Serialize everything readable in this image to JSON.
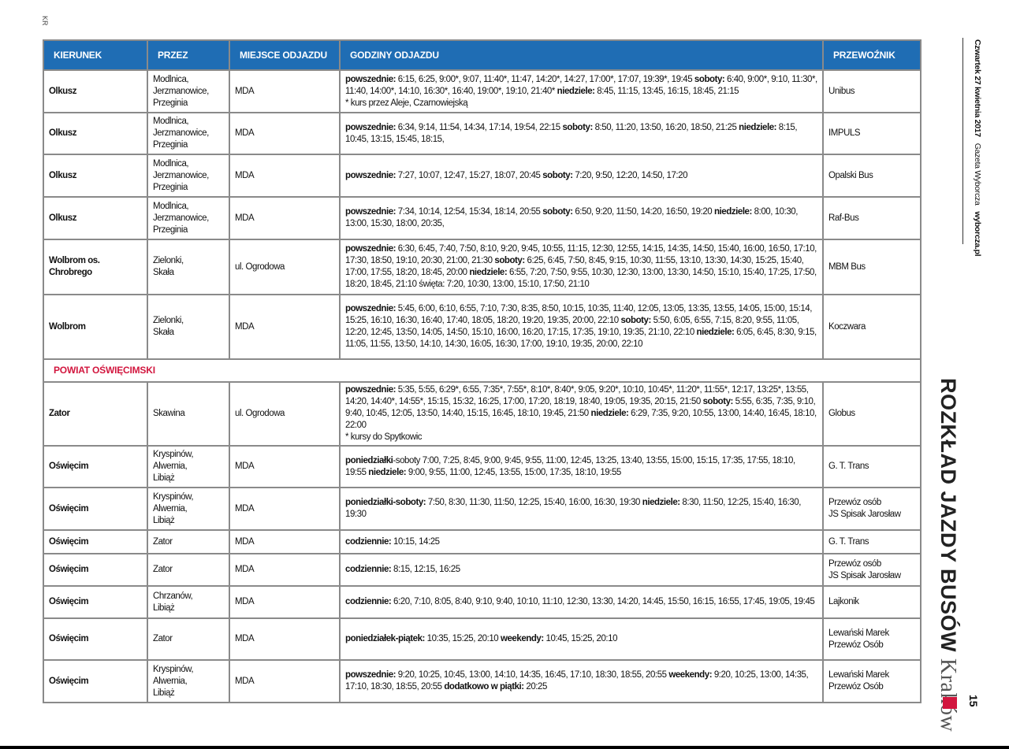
{
  "corner_mark": "KR",
  "side": {
    "date": "Czwartek 27 kwietnia 2017",
    "paper": "Gazeta Wyborcza",
    "site": "wyborcza.pl"
  },
  "title": {
    "main": "ROZKŁAD JAZDY BUSÓW",
    "city": "Kraków"
  },
  "page_number": "15",
  "colors": {
    "header": "#1f6db4",
    "accent": "#d2163e",
    "border": "#8a8a8a"
  },
  "headers": [
    "KIERUNEK",
    "PRZEZ",
    "MIEJSCE ODJAZDU",
    "GODZINY ODJAZDU",
    "PRZEWOŹNIK"
  ],
  "rows": [
    {
      "kierunek": "Olkusz",
      "przez": [
        "Modlnica,",
        "Jerzmanowice,",
        "Przeginia"
      ],
      "miejsce": "MDA",
      "przewoznik": [
        "Unibus"
      ],
      "godziny": [
        {
          "b": "powszednie:",
          "t": " 6:15, 6:25, 9:00*, 9:07, 11:40*, 11:47, 14:20*, 14:27, 17:00*, 17:07, 19:39*, 19:45 "
        },
        {
          "b": "soboty:",
          "t": " 6:40, 9:00*, 9:10, 11:30*, 11:40, 14:00*, 14:10, 16:30*, 16:40, 19:00*, 19:10, 21:40* "
        },
        {
          "b": "niedziele:",
          "t": " 8:45, 11:15, 13:45, 16:15, 18:45, 21:15"
        }
      ],
      "note": "* kurs przez Aleje, Czarnowiejską"
    },
    {
      "kierunek": "Olkusz",
      "przez": [
        "Modlnica,",
        "Jerzmanowice,",
        "Przeginia"
      ],
      "miejsce": "MDA",
      "przewoznik": [
        "IMPULS"
      ],
      "godziny": [
        {
          "b": "powszednie:",
          "t": " 6:34, 9:14, 11:54, 14:34, 17:14, 19:54, 22:15 "
        },
        {
          "b": "soboty:",
          "t": " 8:50, 11:20, 13:50, 16:20, 18:50, 21:25 "
        },
        {
          "b": "niedziele:",
          "t": " 8:15, 10:45, 13:15, 15:45, 18:15,"
        }
      ]
    },
    {
      "kierunek": "Olkusz",
      "przez": [
        "Modlnica,",
        "Jerzmanowice,",
        "Przeginia"
      ],
      "miejsce": "MDA",
      "przewoznik": [
        "Opalski Bus"
      ],
      "godziny": [
        {
          "b": "powszednie:",
          "t": " 7:27, 10:07, 12:47, 15:27, 18:07, 20:45 "
        },
        {
          "b": "soboty:",
          "t": " 7:20, 9:50, 12:20, 14:50, 17:20"
        }
      ]
    },
    {
      "kierunek": "Olkusz",
      "przez": [
        "Modlnica,",
        "Jerzmanowice,",
        "Przeginia"
      ],
      "miejsce": "MDA",
      "przewoznik": [
        "Raf-Bus"
      ],
      "godziny": [
        {
          "b": "powszednie:",
          "t": " 7:34, 10:14, 12:54, 15:34, 18:14, 20:55 "
        },
        {
          "b": "soboty:",
          "t": " 6:50, 9:20, 11:50, 14:20, 16:50, 19:20 "
        },
        {
          "b": "niedziele:",
          "t": " 8:00, 10:30, 13:00, 15:30, 18:00, 20:35,"
        }
      ]
    },
    {
      "kierunek": "Wolbrom os. Chrobrego",
      "przez": [
        "Zielonki,",
        "Skała"
      ],
      "miejsce": "ul. Ogrodowa",
      "przewoznik": [
        "MBM Bus"
      ],
      "godziny": [
        {
          "b": "powszednie:",
          "t": " 6:30, 6:45, 7:40, 7:50, 8:10, 9:20, 9:45, 10:55, 11:15, 12:30, 12:55, 14:15, 14:35, 14:50, 15:40, 16:00, 16:50, 17:10, 17:30, 18:50, 19:10, 20:30, 21:00, 21:30 "
        },
        {
          "b": "soboty:",
          "t": " 6:25, 6:45, 7:50, 8:45, 9:15, 10:30, 11:55, 13:10, 13:30, 14:30, 15:25, 15:40, 17:00, 17:55, 18:20, 18:45, 20:00 "
        },
        {
          "b": "niedziele:",
          "t": " 6:55, 7:20, 7:50, 9:55, 10:30, 12:30, 13:00, 13:30, 14:50, 15:10, 15:40, 17:25, 17:50, 18:20, 18:45, 21:10 święta: 7:20, 10:30, 13:00, 15:10, 17:50, 21:10"
        }
      ]
    },
    {
      "kierunek": "Wolbrom",
      "przez": [
        "Zielonki,",
        "Skała"
      ],
      "miejsce": "MDA",
      "przewoznik": [
        "Koczwara"
      ],
      "godziny": [
        {
          "b": "powszednie:",
          "t": " 5:45, 6:00, 6:10, 6:55, 7:10, 7:30, 8:35, 8:50, 10:15, 10:35, 11:40, 12:05, 13:05, 13:35, 13:55, 14:05, 15:00, 15:14, 15:25, 16:10, 16:30, 16:40, 17:40, 18:05, 18:20, 19:20, 19:35, 20:00, 22:10 "
        },
        {
          "b": "soboty:",
          "t": " 5:50, 6:05, 6:55, 7:15, 8:20, 9:55, 11:05, 12:20, 12:45, 13:50, 14:05, 14:50, 15:10, 16:00, 16:20, 17:15, 17:35, 19:10, 19:35, 21:10, 22:10 "
        },
        {
          "b": "niedziele:",
          "t": " 6:05, 6:45, 8:30, 9:15, 11:05, 11:55, 13:50, 14:10, 14:30, 16:05, 16:30, 17:00, 19:10, 19:35, 20:00, 22:10"
        }
      ]
    },
    {
      "section": "POWIAT OŚWIĘCIMSKI"
    },
    {
      "kierunek": "Zator",
      "przez": [
        "Skawina"
      ],
      "miejsce": "ul. Ogrodowa",
      "przewoznik": [
        "Globus"
      ],
      "godziny": [
        {
          "b": "powszednie:",
          "t": "  5:35, 5:55, 6:29*, 6:55, 7:35*, 7:55*, 8:10*, 8:40*, 9:05, 9:20*, 10:10, 10:45*, 11:20*, 11:55*, 12:17, 13:25*, 13:55, 14:20, 14:40*, 14:55*, 15:15, 15:32, 16:25, 17:00, 17:20, 18:19, 18:40, 19:05, 19:35, 20:15, 21:50 "
        },
        {
          "b": "soboty:",
          "t": "  5:55, 6:35, 7:35, 9:10, 9:40, 10:45, 12:05, 13:50, 14:40,  15:15, 16:45, 18:10, 19:45,  21:50 "
        },
        {
          "b": "niedziele:",
          "t": "  6:29, 7:35, 9:20, 10:55, 13:00, 14:40, 16:45, 18:10, 22:00"
        }
      ],
      "note": "* kursy do Spytkowic"
    },
    {
      "kierunek": "Oświęcim",
      "przez": [
        "Kryspinów,",
        "Alwernia,",
        "Libiąż"
      ],
      "miejsce": "MDA",
      "przewoznik": [
        "G. T. Trans"
      ],
      "godziny": [
        {
          "b": "poniedziałki",
          "t": "-soboty 7:00, 7:25, 8:45, 9:00, 9:45, 9:55, 11:00, 12:45, 13:25, 13:40, 13:55, 15:00, 15:15, 17:35, 17:55, 18:10, 19:55 "
        },
        {
          "b": "niedziele:",
          "t": "  9:00, 9:55, 11:00, 12:45, 13:55, 15:00, 17:35, 18:10, 19:55"
        }
      ]
    },
    {
      "kierunek": "Oświęcim",
      "przez": [
        "Kryspinów,",
        "Alwernia,",
        "Libiąż"
      ],
      "miejsce": "MDA",
      "przewoznik": [
        "Przewóz osób",
        "JS Spisak Jarosław"
      ],
      "godziny": [
        {
          "b": "poniedziałki-soboty:",
          "t": " 7:50, 8:30, 11:30, 11:50, 12:25, 15:40, 16:00, 16:30, 19:30 "
        },
        {
          "b": "niedziele:",
          "t": " 8:30, 11:50, 12:25, 15:40, 16:30, 19:30"
        }
      ]
    },
    {
      "kierunek": "Oświęcim",
      "przez": [
        "Zator"
      ],
      "miejsce": "MDA",
      "przewoznik": [
        "G. T. Trans"
      ],
      "godziny": [
        {
          "b": "codziennie:",
          "t": " 10:15, 14:25"
        }
      ]
    },
    {
      "kierunek": "Oświęcim",
      "przez": [
        "Zator"
      ],
      "miejsce": "MDA",
      "przewoznik": [
        "Przewóz osób",
        "JS Spisak Jarosław"
      ],
      "godziny": [
        {
          "b": "codziennie:",
          "t": " 8:15, 12:15, 16:25"
        }
      ]
    },
    {
      "kierunek": "Oświęcim",
      "przez": [
        "Chrzanów,",
        "Libiąż"
      ],
      "miejsce": "MDA",
      "przewoznik": [
        "Lajkonik"
      ],
      "godziny": [
        {
          "b": "codziennie:",
          "t": "  6:20, 7:10, 8:05, 8:40, 9:10, 9:40, 10:10, 11:10, 12:30, 13:30, 14:20, 14:45, 15:50, 16:15, 16:55, 17:45, 19:05, 19:45"
        }
      ]
    },
    {
      "kierunek": "Oświęcim",
      "przez": [
        "Zator"
      ],
      "miejsce": "MDA",
      "przewoznik": [
        "Lewański Marek",
        "Przewóz Osób"
      ],
      "godziny": [
        {
          "b": "poniedziałek-piątek:",
          "t": " 10:35, 15:25, 20:10 "
        },
        {
          "b": "weekendy:",
          "t": " 10:45, 15:25, 20:10"
        }
      ]
    },
    {
      "kierunek": "Oświęcim",
      "przez": [
        "Kryspinów,",
        "Alwernia,",
        "Libiąż"
      ],
      "miejsce": "MDA",
      "przewoznik": [
        "Lewański Marek",
        "Przewóz Osób"
      ],
      "godziny": [
        {
          "b": "powszednie:",
          "t": " 9:20, 10:25, 10:45, 13:00, 14:10, 14:35, 16:45, 17:10, 18:30, 18:55, 20:55 "
        },
        {
          "b": "weekendy:",
          "t": " 9:20, 10:25, 13:00, 14:35, 17:10, 18:30, 18:55, 20:55 "
        },
        {
          "b": "dodatkowo w piątki:",
          "t": " 20:25"
        }
      ]
    }
  ]
}
